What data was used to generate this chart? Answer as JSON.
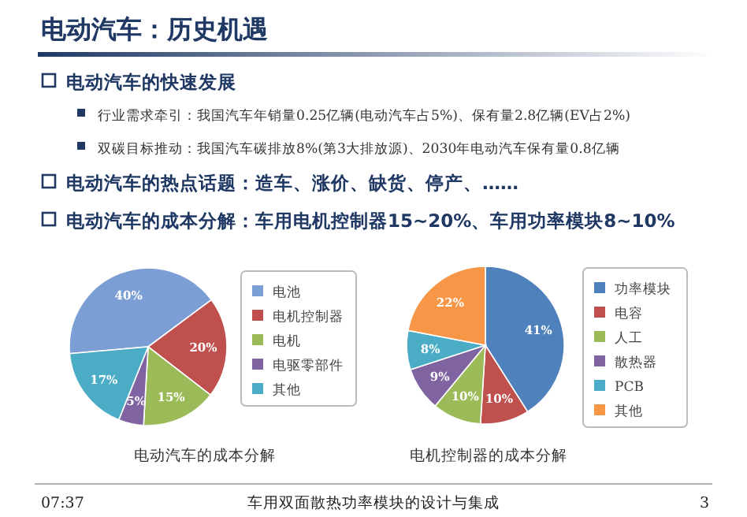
{
  "chart_data": [
    {
      "type": "other",
      "title": "电动汽车：历史机遇",
      "annotations": [
        "电动汽车的快速发展",
        "行业需求牵引：我国汽车年销量0.25亿辆(电动汽车占5%)、保有量2.8亿辆(EV占2%)",
        "双碳目标推动：我国汽车碳排放8%(第3大排放源)、2030年电动汽车保有量0.8亿辆",
        "电动汽车的热点话题：造车、涨价、缺货、停产、……",
        "电动汽车的成本分解：车用电机控制器15~20%、车用功率模块8~10%",
        "07:37",
        "车用双面散热功率模块的设计与集成",
        "3"
      ]
    },
    {
      "type": "pie",
      "title": "电动汽车的成本分解",
      "categories": [
        "电池",
        "电机控制器",
        "电机",
        "电驱零部件",
        "其他"
      ],
      "values": [
        40,
        20,
        15,
        5,
        17
      ],
      "value_labels": [
        "40%",
        "20%",
        "15%",
        "5%",
        "17%"
      ],
      "colors": [
        "#7b9fd4",
        "#c0504d",
        "#9bbb59",
        "#8064a2",
        "#4bacc6"
      ],
      "legend": "right"
    },
    {
      "type": "pie",
      "title": "电机控制器的成本分解",
      "categories": [
        "功率模块",
        "电容",
        "人工",
        "散热器",
        "PCB",
        "其他"
      ],
      "values": [
        41,
        10,
        10,
        9,
        8,
        22
      ],
      "value_labels": [
        "41%",
        "10%",
        "10%",
        "9%",
        "8%",
        "22%"
      ],
      "colors": [
        "#4f81bd",
        "#c0504d",
        "#9bbb59",
        "#8064a2",
        "#4bacc6",
        "#f79646"
      ],
      "legend": "right"
    }
  ]
}
